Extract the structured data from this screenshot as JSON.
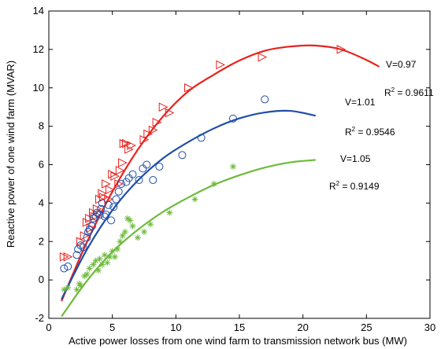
{
  "chart_data": {
    "type": "scatter",
    "title": "",
    "xlabel": "Active power losses from one wind farm to transmission network bus (MW)",
    "ylabel": "Reactive power of one wind farm (MVAR)",
    "xlim": [
      0,
      30
    ],
    "ylim": [
      -2,
      14
    ],
    "xticks": [
      "0",
      "5",
      "10",
      "15",
      "20",
      "25",
      "30"
    ],
    "yticks": [
      "-2",
      "0",
      "2",
      "4",
      "6",
      "8",
      "10",
      "12",
      "14"
    ],
    "grid": false,
    "series": [
      {
        "name": "V=0.97",
        "marker": "triangle-right",
        "color": "#e8211c",
        "points": [
          [
            1.2,
            1.2
          ],
          [
            1.5,
            1.2
          ],
          [
            2.5,
            2.0
          ],
          [
            2.8,
            2.3
          ],
          [
            3.0,
            3.0
          ],
          [
            3.2,
            3.2
          ],
          [
            3.3,
            2.7
          ],
          [
            3.5,
            3.5
          ],
          [
            3.6,
            3.3
          ],
          [
            3.8,
            3.7
          ],
          [
            4.0,
            4.2
          ],
          [
            4.2,
            4.5
          ],
          [
            4.3,
            4.3
          ],
          [
            4.5,
            5.0
          ],
          [
            4.7,
            4.2
          ],
          [
            4.8,
            4.7
          ],
          [
            5.0,
            5.5
          ],
          [
            5.2,
            5.4
          ],
          [
            5.5,
            5.0
          ],
          [
            5.6,
            5.7
          ],
          [
            5.8,
            6.1
          ],
          [
            5.9,
            7.1
          ],
          [
            6.1,
            7.1
          ],
          [
            6.3,
            6.8
          ],
          [
            6.5,
            7.0
          ],
          [
            7.5,
            7.3
          ],
          [
            7.8,
            7.6
          ],
          [
            8.2,
            7.8
          ],
          [
            8.5,
            8.2
          ],
          [
            9.0,
            9.0
          ],
          [
            9.5,
            8.7
          ],
          [
            11.0,
            10.0
          ],
          [
            13.5,
            11.2
          ],
          [
            16.8,
            11.6
          ],
          [
            23.0,
            12.0
          ]
        ],
        "fit": {
          "x": [
            1,
            3,
            5,
            7,
            9,
            11,
            13,
            15,
            17,
            19,
            21,
            23,
            25,
            26
          ],
          "y": [
            -1.1,
            1.97,
            4.59,
            6.78,
            8.52,
            9.83,
            10.69,
            11.42,
            11.93,
            12.15,
            12.2,
            12.0,
            11.45,
            11.1
          ]
        },
        "v_label": "V=0.97",
        "r2_label": "= 0.9611"
      },
      {
        "name": "V=1.01",
        "marker": "circle",
        "color": "#1f4ea8",
        "points": [
          [
            1.2,
            0.6
          ],
          [
            1.5,
            0.7
          ],
          [
            2.2,
            1.3
          ],
          [
            2.3,
            1.6
          ],
          [
            2.5,
            1.8
          ],
          [
            2.7,
            1.7
          ],
          [
            3.0,
            2.2
          ],
          [
            3.1,
            2.5
          ],
          [
            3.2,
            2.6
          ],
          [
            3.4,
            2.8
          ],
          [
            3.5,
            3.2
          ],
          [
            3.7,
            3.3
          ],
          [
            3.8,
            3.5
          ],
          [
            4.0,
            3.4
          ],
          [
            4.1,
            3.7
          ],
          [
            4.2,
            4.0
          ],
          [
            4.4,
            3.3
          ],
          [
            4.5,
            3.4
          ],
          [
            4.7,
            3.9
          ],
          [
            4.9,
            3.1
          ],
          [
            5.1,
            3.8
          ],
          [
            5.3,
            4.2
          ],
          [
            5.5,
            4.6
          ],
          [
            5.7,
            5.0
          ],
          [
            6.1,
            5.1
          ],
          [
            6.3,
            5.3
          ],
          [
            6.6,
            5.5
          ],
          [
            7.1,
            5.2
          ],
          [
            7.4,
            5.8
          ],
          [
            7.7,
            6.0
          ],
          [
            8.2,
            5.2
          ],
          [
            8.7,
            5.9
          ],
          [
            10.5,
            6.5
          ],
          [
            12.0,
            7.4
          ],
          [
            14.5,
            8.4
          ],
          [
            17.0,
            9.4
          ]
        ],
        "fit": {
          "x": [
            1,
            3,
            5,
            7,
            9,
            11,
            13,
            15,
            17,
            19,
            21
          ],
          "y": [
            -1.0,
            1.59,
            3.63,
            5.17,
            6.34,
            7.19,
            7.89,
            8.41,
            8.72,
            8.8,
            8.55
          ]
        },
        "v_label": "V=1.01",
        "r2_label": "= 0.9546"
      },
      {
        "name": "V=1.05",
        "marker": "asterisk",
        "color": "#6dbb3a",
        "points": [
          [
            1.2,
            -0.5
          ],
          [
            1.5,
            -0.4
          ],
          [
            2.2,
            -0.5
          ],
          [
            2.4,
            -0.2
          ],
          [
            2.5,
            -0.3
          ],
          [
            2.8,
            0.2
          ],
          [
            3.0,
            0.3
          ],
          [
            3.2,
            0.6
          ],
          [
            3.5,
            0.8
          ],
          [
            3.7,
            1.0
          ],
          [
            3.9,
            0.5
          ],
          [
            4.0,
            1.1
          ],
          [
            4.2,
            0.8
          ],
          [
            4.4,
            1.3
          ],
          [
            4.6,
            0.9
          ],
          [
            4.8,
            1.2
          ],
          [
            5.0,
            1.5
          ],
          [
            5.2,
            1.2
          ],
          [
            5.4,
            1.6
          ],
          [
            5.6,
            2.0
          ],
          [
            5.8,
            2.3
          ],
          [
            6.0,
            2.5
          ],
          [
            6.2,
            3.2
          ],
          [
            6.4,
            3.1
          ],
          [
            6.6,
            2.8
          ],
          [
            7.0,
            2.2
          ],
          [
            7.5,
            2.5
          ],
          [
            8.0,
            2.9
          ],
          [
            9.5,
            3.5
          ],
          [
            11.5,
            4.2
          ],
          [
            13.0,
            5.0
          ],
          [
            14.5,
            5.9
          ]
        ],
        "fit": {
          "x": [
            1,
            3,
            5,
            7,
            9,
            11,
            13,
            15,
            17,
            19,
            21
          ],
          "y": [
            -1.9,
            -0.05,
            1.46,
            2.61,
            3.55,
            4.3,
            4.95,
            5.45,
            5.85,
            6.12,
            6.25
          ]
        },
        "v_label": "V=1.05",
        "r2_label": "= 0.9149"
      }
    ]
  }
}
